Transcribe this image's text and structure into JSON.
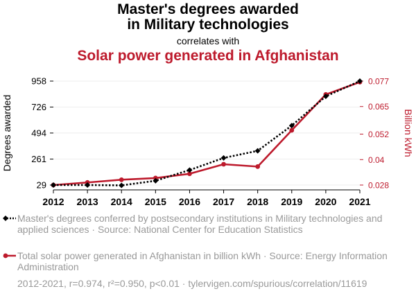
{
  "header": {
    "title_line1": "Master's degrees awarded",
    "title_line2": "in Military technologies",
    "subtitle": "correlates with",
    "title2": "Solar power generated in Afghanistan"
  },
  "colors": {
    "series1": "#000000",
    "series2": "#bd1a2c",
    "legend_text": "#999999"
  },
  "chart_data": {
    "type": "line",
    "x": [
      2012,
      2013,
      2014,
      2015,
      2016,
      2017,
      2018,
      2019,
      2020,
      2021
    ],
    "xlabel": "",
    "series": [
      {
        "name": "Master's degrees conferred by postsecondary institutions in Military technologies and applied sciences",
        "axis": "left",
        "values": [
          29,
          29,
          26,
          67,
          163,
          271,
          335,
          560,
          822,
          958
        ],
        "marker": "diamond",
        "line": "dotted"
      },
      {
        "name": "Total solar power generated in Afghanistan in billion kWh",
        "axis": "right",
        "values": [
          0.028,
          0.0292,
          0.0305,
          0.0313,
          0.0333,
          0.0378,
          0.0367,
          0.0538,
          0.0707,
          0.0765
        ],
        "marker": "circle",
        "line": "solid"
      }
    ],
    "left_axis": {
      "label": "Degrees awarded",
      "ticks": [
        29,
        261,
        494,
        726,
        958
      ],
      "tick_labels": [
        "29",
        "261",
        "494",
        "726",
        "958"
      ],
      "range": [
        29,
        958
      ]
    },
    "right_axis": {
      "label": "Billion kWh",
      "ticks": [
        0.028,
        0.04,
        0.052,
        0.065,
        0.077
      ],
      "tick_labels": [
        "0.028",
        "0.04",
        "0.052",
        "0.065",
        "0.077"
      ],
      "range": [
        0.028,
        0.077
      ]
    },
    "grid": true
  },
  "legend": {
    "item1": "Master's degrees conferred by postsecondary institutions in Military technologies and applied sciences · Source: National Center for Education Statistics",
    "item2": "Total solar power generated in Afghanistan in billion kWh · Source: Energy Information Administration"
  },
  "footer": "2012-2021, r=0.974, r²=0.950, p<0.01 · tylervigen.com/spurious/correlation/11619"
}
